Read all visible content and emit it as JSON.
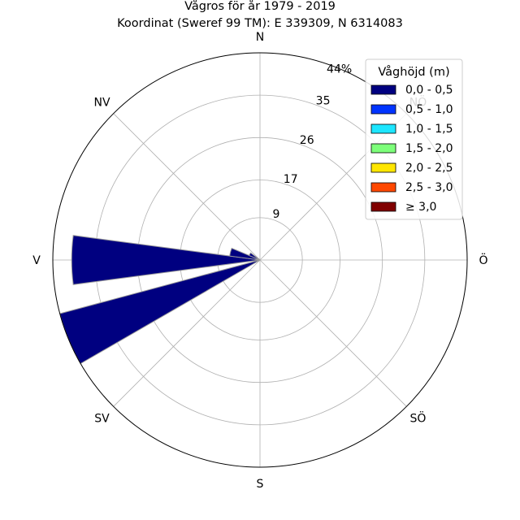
{
  "title": {
    "line1": "Vågros för år 1979 - 2019",
    "line2": "Koordinat (Sweref 99 TM): E 339309, N 6314083"
  },
  "chart_data": {
    "type": "bar",
    "polar": true,
    "title": "Vågros för år 1979 - 2019",
    "subtitle": "Koordinat (Sweref 99 TM): E 339309, N 6314083",
    "directions": [
      "N",
      "NV",
      "V",
      "SV",
      "S",
      "SÖ",
      "Ö",
      "NÖ"
    ],
    "direction_angles_deg": {
      "N": 0,
      "NÖ": 45,
      "Ö": 90,
      "SÖ": 135,
      "S": 180,
      "SV": 225,
      "V": 270,
      "NV": 315
    },
    "radial_ticks": [
      9,
      17,
      26,
      35
    ],
    "radial_tick_labels": [
      "9",
      "17",
      "26",
      "35"
    ],
    "radial_max": 44,
    "radial_max_label": "44%",
    "radial_max_label_position": "near-north",
    "grid": true,
    "legend_title": "Våghöjd (m)",
    "legend_position": "top-right",
    "legend": [
      {
        "label": "0,0 - 0,5",
        "color": "#000080"
      },
      {
        "label": "0,5 - 1,0",
        "color": "#0034ff"
      },
      {
        "label": "1,0 - 1,5",
        "color": "#1de6ff"
      },
      {
        "label": "1,5 - 2,0",
        "color": "#7dff7a"
      },
      {
        "label": "2,0 - 2,5",
        "color": "#ffe600"
      },
      {
        "label": "2,5 - 3,0",
        "color": "#ff4800"
      },
      {
        "label": "≥ 3,0",
        "color": "#800000"
      }
    ],
    "sector_width_deg": 15,
    "series": [
      {
        "name": "0,0 - 0,5",
        "color": "#000080",
        "bars": [
          {
            "direction_deg": 270,
            "value": 40
          },
          {
            "direction_deg": 247.5,
            "value": 44
          },
          {
            "direction_deg": 285,
            "value": 6.5
          },
          {
            "direction_deg": 300,
            "value": 2.5
          }
        ]
      }
    ]
  }
}
